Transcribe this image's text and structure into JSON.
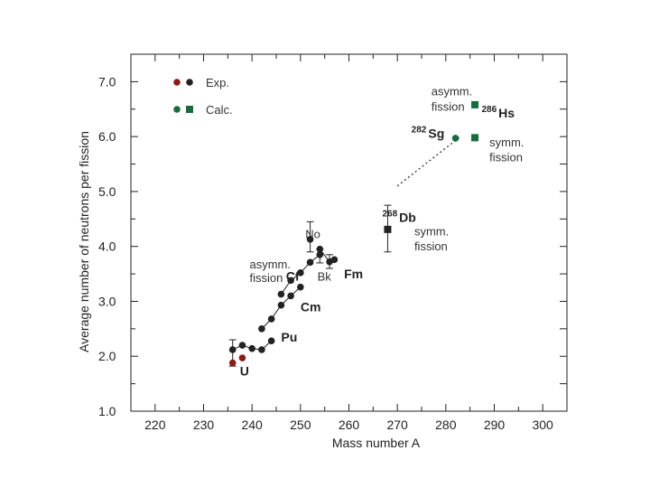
{
  "chart_data": {
    "type": "scatter",
    "title": "",
    "xlabel": "Mass number  A",
    "ylabel": "Average number of neutrons per fission",
    "xlim": [
      215,
      305
    ],
    "ylim": [
      1.0,
      7.5
    ],
    "x_ticks": [
      "220",
      "230",
      "240",
      "250",
      "260",
      "270",
      "280",
      "290",
      "300"
    ],
    "y_ticks": [
      "1.0",
      "2.0",
      "3.0",
      "4.0",
      "5.0",
      "6.0",
      "7.0"
    ],
    "legend": {
      "position": "top-left",
      "entries": [
        {
          "label": "Exp.",
          "markers": [
            "circle",
            "circle"
          ],
          "colors": [
            "#8b1a1a",
            "#222222"
          ]
        },
        {
          "label": "Calc.",
          "markers": [
            "circle",
            "square"
          ],
          "colors": [
            "#1a6b3c",
            "#1a6b3c"
          ]
        }
      ]
    },
    "colors": {
      "uranium": "#8b1a1a",
      "experimental": "#222222",
      "calculated": "#1a6b3c"
    },
    "series": [
      {
        "name": "U",
        "marker": "circle",
        "color": "#8b1a1a",
        "points": [
          {
            "x": 236,
            "y": 1.88
          },
          {
            "x": 238,
            "y": 1.97
          }
        ]
      },
      {
        "name": "Pu",
        "marker": "circle",
        "color": "#222222",
        "connected": true,
        "points": [
          {
            "x": 236,
            "y": 2.12
          },
          {
            "x": 238,
            "y": 2.2
          },
          {
            "x": 240,
            "y": 2.14
          },
          {
            "x": 242,
            "y": 2.12
          },
          {
            "x": 244,
            "y": 2.28
          }
        ]
      },
      {
        "name": "Cm",
        "marker": "circle",
        "color": "#222222",
        "connected": true,
        "points": [
          {
            "x": 242,
            "y": 2.5
          },
          {
            "x": 244,
            "y": 2.68
          },
          {
            "x": 246,
            "y": 2.93
          },
          {
            "x": 248,
            "y": 3.1
          },
          {
            "x": 250,
            "y": 3.26
          }
        ]
      },
      {
        "name": "Cf",
        "marker": "circle",
        "color": "#222222",
        "connected": true,
        "points": [
          {
            "x": 246,
            "y": 3.13
          },
          {
            "x": 248,
            "y": 3.38
          },
          {
            "x": 250,
            "y": 3.52
          },
          {
            "x": 252,
            "y": 3.71
          },
          {
            "x": 254,
            "y": 3.85
          }
        ]
      },
      {
        "name": "Fm",
        "marker": "circle",
        "color": "#222222",
        "connected": true,
        "points": [
          {
            "x": 254,
            "y": 3.95
          },
          {
            "x": 256,
            "y": 3.72
          },
          {
            "x": 257,
            "y": 3.76
          }
        ]
      },
      {
        "name": "No",
        "marker": "circle",
        "color": "#222222",
        "points": [
          {
            "x": 252,
            "y": 4.13
          }
        ]
      },
      {
        "name": "Db",
        "marker": "square",
        "color": "#222222",
        "points": [
          {
            "x": 268,
            "y": 4.31
          }
        ]
      },
      {
        "name": "Sg calc.",
        "marker": "circle",
        "color": "#1a6b3c",
        "points": [
          {
            "x": 282,
            "y": 5.97
          }
        ]
      },
      {
        "name": "Hs calc.",
        "marker": "square",
        "color": "#1a6b3c",
        "points": [
          {
            "x": 286,
            "y": 6.58
          },
          {
            "x": 286,
            "y": 5.98
          }
        ]
      }
    ],
    "trend_line": {
      "from": {
        "x": 270,
        "y": 5.1
      },
      "to": {
        "x": 283,
        "y": 6.0
      },
      "style": "dotted"
    },
    "annotations": [
      {
        "text": "U",
        "x": 237.5,
        "y": 1.65,
        "color": "#8b1a1a"
      },
      {
        "text": "Pu",
        "x": 246,
        "y": 2.27
      },
      {
        "text": "Cm",
        "x": 250,
        "y": 2.82
      },
      {
        "text": "Cf",
        "x": 247,
        "y": 3.38
      },
      {
        "text": "Bk",
        "x": 253.5,
        "y": 3.38
      },
      {
        "text": "Fm",
        "x": 259,
        "y": 3.42
      },
      {
        "text": "No",
        "x": 251,
        "y": 4.15
      },
      {
        "text": "asymm.",
        "x": 239.5,
        "y": 3.6
      },
      {
        "text": "fission",
        "x": 239.5,
        "y": 3.35
      },
      {
        "text": "asymm.",
        "x": 277,
        "y": 6.75
      },
      {
        "text": "fission",
        "x": 277,
        "y": 6.47
      },
      {
        "text": "symm.",
        "x": 289,
        "y": 5.82
      },
      {
        "text": "fission",
        "x": 289,
        "y": 5.55
      },
      {
        "text": "symm.",
        "x": 273.5,
        "y": 4.2
      },
      {
        "text": "fission",
        "x": 273.5,
        "y": 3.93
      }
    ],
    "labels_with_mass": [
      {
        "mass": "282",
        "symbol": "Sg",
        "x": 276,
        "y": 5.98,
        "color": "#1a6b3c"
      },
      {
        "mass": "286",
        "symbol": "Hs",
        "x": 290.5,
        "y": 6.35,
        "color": "#1a6b3c"
      },
      {
        "mass": "268",
        "symbol": "Db",
        "x": 270,
        "y": 4.45,
        "color": "#222222"
      }
    ]
  }
}
